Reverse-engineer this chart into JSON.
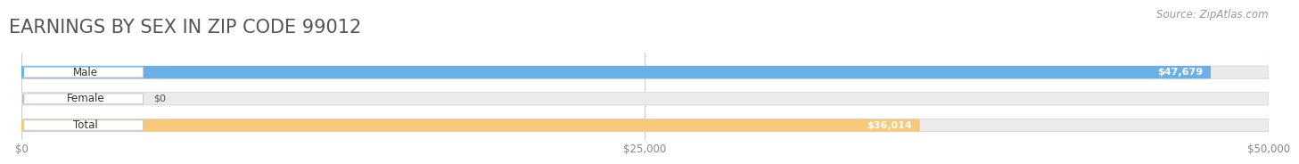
{
  "title": "EARNINGS BY SEX IN ZIP CODE 99012",
  "source": "Source: ZipAtlas.com",
  "categories": [
    "Male",
    "Female",
    "Total"
  ],
  "values": [
    47679,
    0,
    36014
  ],
  "bar_colors": [
    "#6aafe6",
    "#f4a0b5",
    "#f5c87a"
  ],
  "track_color": "#ebebeb",
  "value_labels": [
    "$47,679",
    "$0",
    "$36,014"
  ],
  "xlim": [
    0,
    50000
  ],
  "xticks": [
    0,
    25000,
    50000
  ],
  "xticklabels": [
    "$0",
    "$25,000",
    "$50,000"
  ],
  "title_fontsize": 15,
  "title_color": "#555555",
  "source_fontsize": 8.5,
  "source_color": "#999999"
}
